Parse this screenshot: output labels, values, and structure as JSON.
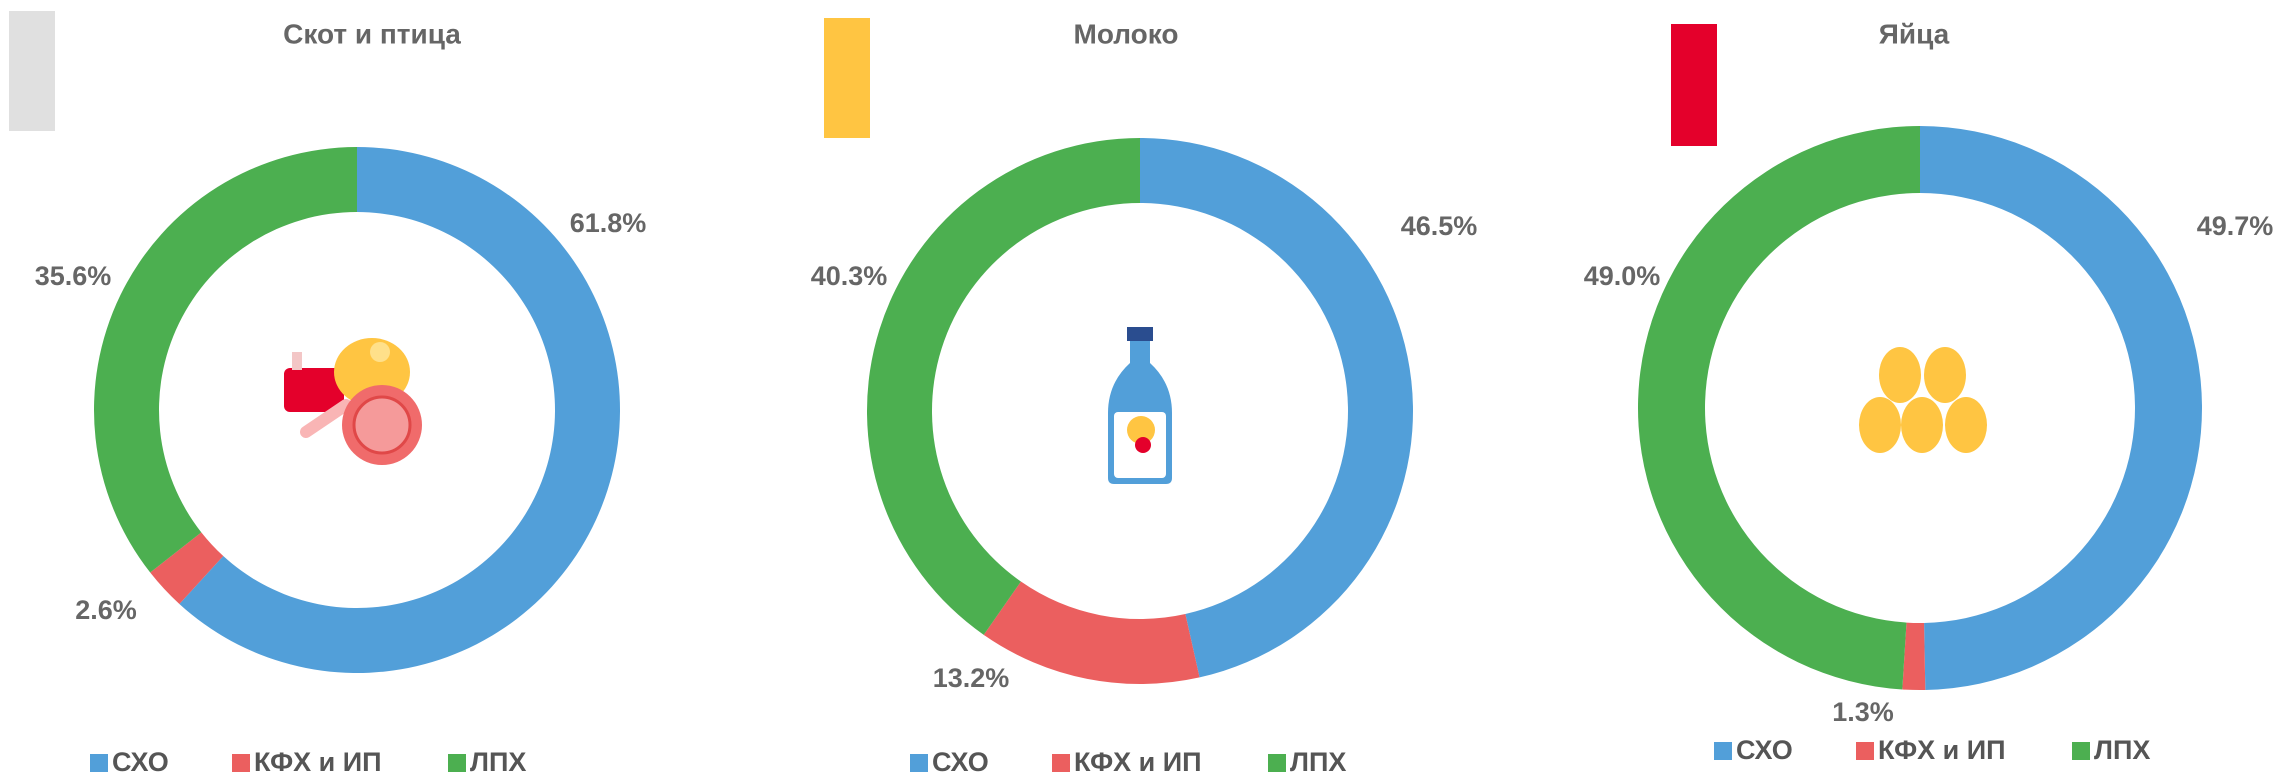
{
  "chart_data": [
    {
      "type": "pie",
      "donut": true,
      "title": "Скот и птица",
      "categories": [
        "СХО",
        "КФХ и ИП",
        "ЛПХ"
      ],
      "values": [
        61.8,
        2.6,
        35.6
      ],
      "value_labels": [
        "61.8%",
        "2.6%",
        "35.6%"
      ],
      "colors": [
        "#529fd9",
        "#eb5f5f",
        "#4caf50"
      ]
    },
    {
      "type": "pie",
      "donut": true,
      "title": "Молоко",
      "categories": [
        "СХО",
        "КФХ и ИП",
        "ЛПХ"
      ],
      "values": [
        46.5,
        13.2,
        40.3
      ],
      "value_labels": [
        "46.5%",
        "13.2%",
        "40.3%"
      ],
      "colors": [
        "#529fd9",
        "#eb5f5f",
        "#4caf50"
      ]
    },
    {
      "type": "pie",
      "donut": true,
      "title": "Яйца",
      "categories": [
        "СХО",
        "КФХ и ИП",
        "ЛПХ"
      ],
      "values": [
        49.7,
        1.3,
        49.0
      ],
      "value_labels": [
        "49.7%",
        "1.3%",
        "49.0%"
      ],
      "colors": [
        "#529fd9",
        "#eb5f5f",
        "#4caf50"
      ]
    }
  ]
}
